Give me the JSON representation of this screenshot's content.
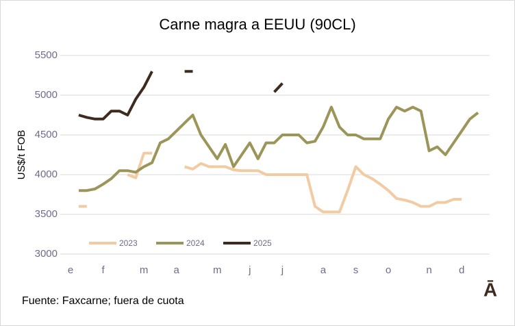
{
  "chart_data": {
    "type": "line",
    "title": "Carne magra a EEUU (90CL)",
    "y_label": "US$/t FOB",
    "source": "Fuente: Faxcarne; fuera de cuota",
    "logo": "Ā",
    "categories": [
      "e",
      null,
      null,
      null,
      "f",
      null,
      null,
      null,
      null,
      "m",
      null,
      null,
      null,
      "a",
      null,
      null,
      null,
      null,
      "m",
      null,
      null,
      null,
      "j",
      null,
      null,
      null,
      "j",
      null,
      null,
      null,
      null,
      "a",
      null,
      null,
      null,
      "s",
      null,
      null,
      null,
      "o",
      null,
      null,
      null,
      null,
      "n",
      null,
      null,
      null,
      "d",
      null,
      null,
      null,
      null
    ],
    "series": [
      {
        "name": "2023",
        "color": "#f2cba3",
        "values": [
          null,
          3600,
          3600,
          null,
          null,
          null,
          null,
          4000,
          3960,
          4270,
          4270,
          null,
          null,
          null,
          4100,
          4070,
          4140,
          4100,
          4100,
          4100,
          4060,
          4050,
          4050,
          4050,
          4000,
          4000,
          4000,
          4000,
          4000,
          4000,
          3600,
          3530,
          3530,
          3530,
          3800,
          4100,
          4000,
          3950,
          3880,
          3800,
          3700,
          3680,
          3650,
          3600,
          3600,
          3650,
          3650,
          3690,
          3690,
          null,
          null,
          null,
          null
        ]
      },
      {
        "name": "2024",
        "color": "#9c955a",
        "values": [
          null,
          3800,
          3800,
          3820,
          3880,
          3950,
          4050,
          4050,
          4030,
          4100,
          4150,
          4400,
          4450,
          4550,
          4650,
          4750,
          4500,
          4350,
          4200,
          4380,
          4100,
          4250,
          4400,
          4200,
          4400,
          4400,
          4500,
          4500,
          4500,
          4400,
          4420,
          4600,
          4850,
          4600,
          4500,
          4500,
          4450,
          4450,
          4450,
          4700,
          4850,
          4800,
          4850,
          4800,
          4300,
          4350,
          4250,
          4400,
          4550,
          4700,
          4780,
          null,
          null
        ]
      },
      {
        "name": "2025",
        "color": "#3e2a1e",
        "values": [
          null,
          4750,
          4720,
          4700,
          4700,
          4800,
          4800,
          4750,
          4950,
          5100,
          5300,
          null,
          null,
          null,
          5300,
          5300,
          null,
          null,
          null,
          null,
          null,
          null,
          null,
          null,
          null,
          5040,
          5150,
          null,
          null,
          null,
          null,
          null,
          null,
          null,
          null,
          null,
          null,
          null,
          null,
          null,
          null,
          null,
          null,
          null,
          null,
          null,
          null,
          null,
          null,
          null,
          null,
          null,
          null
        ]
      }
    ],
    "ylim": [
      3000,
      5500
    ],
    "yticks": [
      3000,
      3500,
      4000,
      4500,
      5000,
      5500
    ],
    "grid": true
  }
}
